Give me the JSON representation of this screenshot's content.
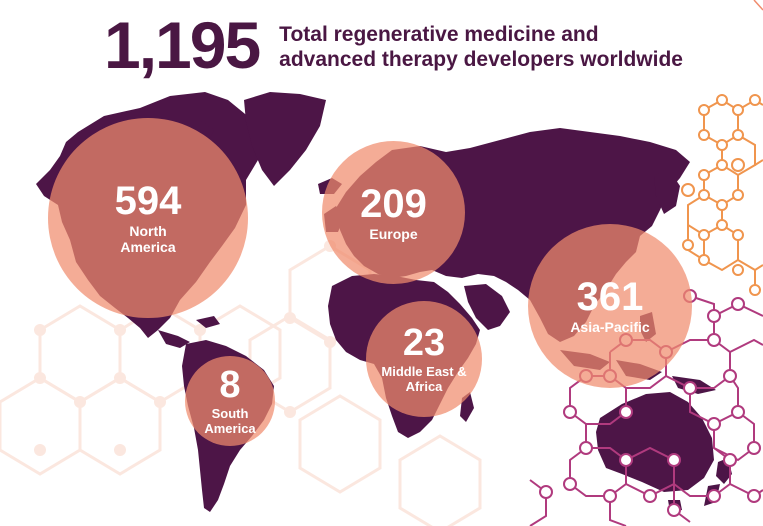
{
  "headline": {
    "total": "1,195",
    "description": "Total regenerative medicine and advanced therapy developers worldwide"
  },
  "colors": {
    "land": "#4d1547",
    "circle_fill": "#f08c6e",
    "title": "#4a1743",
    "hex_orange": "#f0954e",
    "hex_magenta": "#b03a7e",
    "hex_faint": "#fbe7df"
  },
  "regions": [
    {
      "id": "north-america",
      "count": "594",
      "label": "North America"
    },
    {
      "id": "europe",
      "count": "209",
      "label": "Europe"
    },
    {
      "id": "asia-pacific",
      "count": "361",
      "label": "Asia-Pacific"
    },
    {
      "id": "middle-east-africa",
      "count": "23",
      "label": "Middle East & Africa"
    },
    {
      "id": "south-america",
      "count": "8",
      "label": "South America"
    }
  ]
}
